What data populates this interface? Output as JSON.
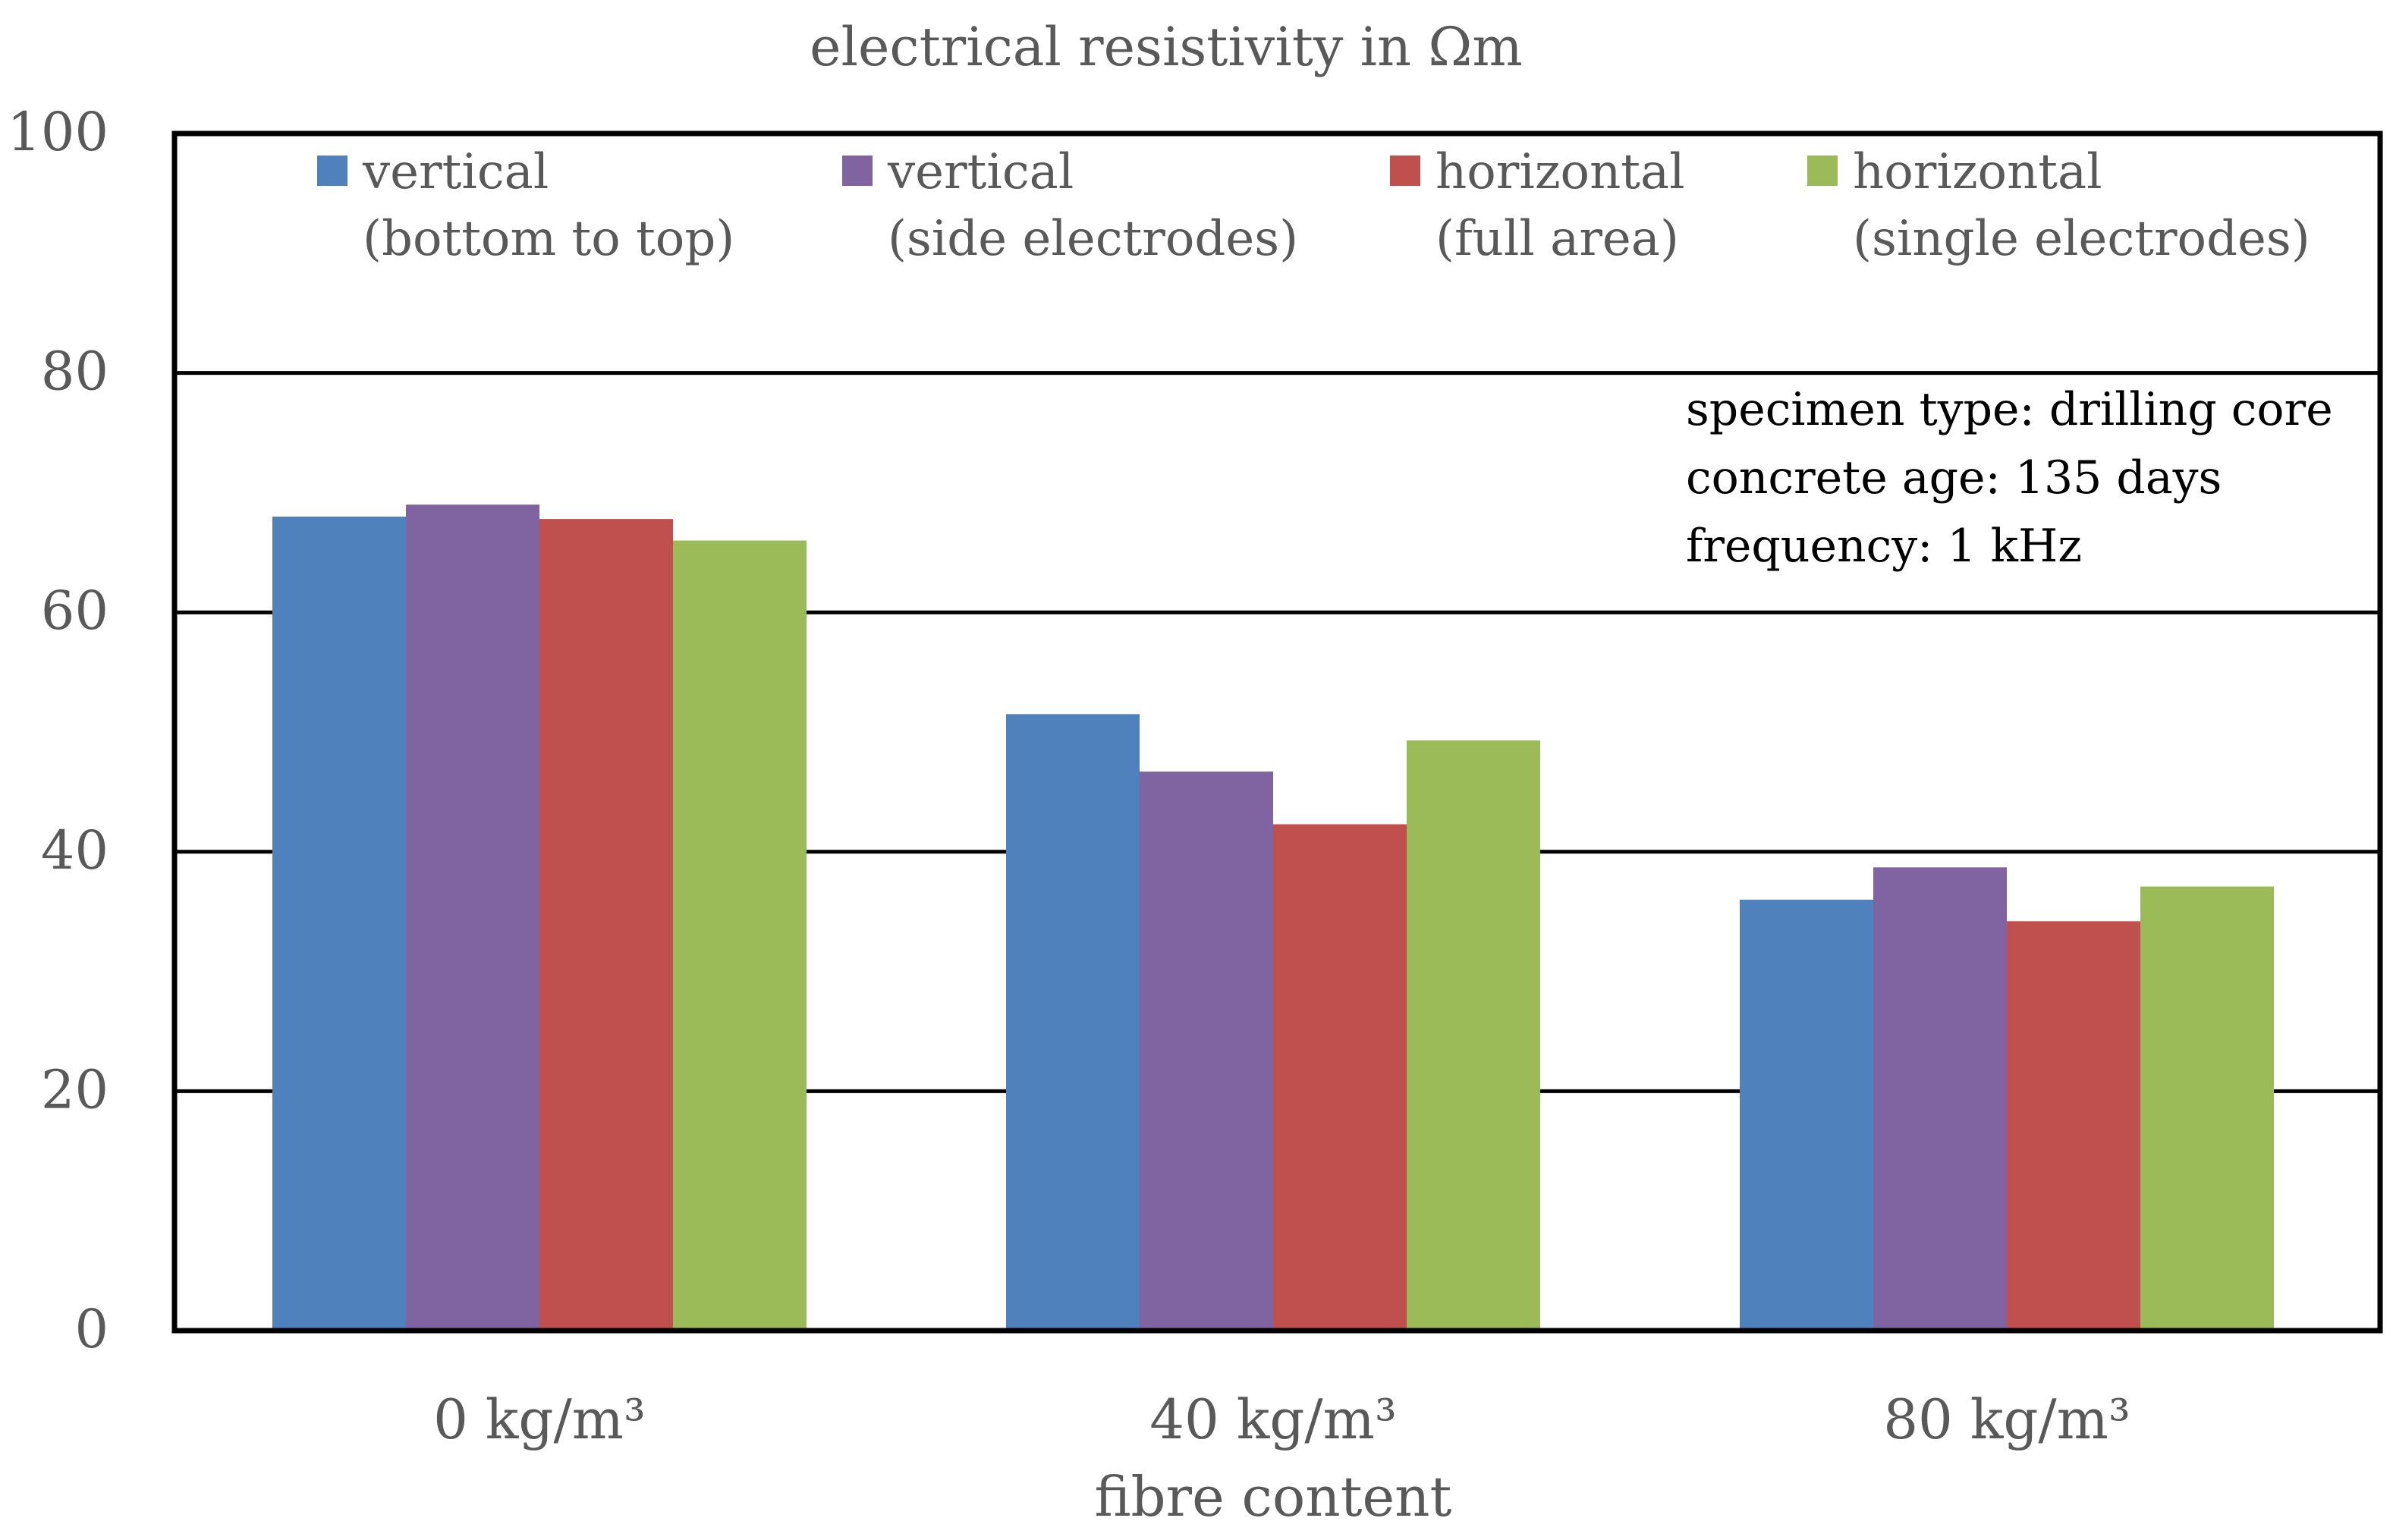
{
  "chart_data": {
    "type": "bar",
    "title": "electrical resistivity in Ωm",
    "xlabel": "fibre content",
    "ylabel": "",
    "ylim": [
      0,
      100
    ],
    "yticks": [
      0,
      20,
      40,
      60,
      80,
      100
    ],
    "grid": true,
    "legend_position": "top",
    "categories": [
      "0 kg/m³",
      "40 kg/m³",
      "80 kg/m³"
    ],
    "series": [
      {
        "name": "vertical",
        "subname": "(bottom to top)",
        "color": "#4F81BD",
        "values": [
          68,
          51.5,
          36
        ]
      },
      {
        "name": "vertical",
        "subname": "(side electrodes)",
        "color": "#8064A2",
        "values": [
          69,
          46.7,
          38.7
        ]
      },
      {
        "name": "horizontal",
        "subname": "(full area)",
        "color": "#C0504D",
        "values": [
          67.8,
          42.3,
          34.2
        ]
      },
      {
        "name": "horizontal",
        "subname": "(single electrodes)",
        "color": "#9BBB59",
        "values": [
          66,
          49.3,
          37.1
        ]
      }
    ],
    "annotations": [
      "specimen type: drilling core",
      "concrete age: 135 days",
      "frequency: 1 kHz"
    ]
  }
}
